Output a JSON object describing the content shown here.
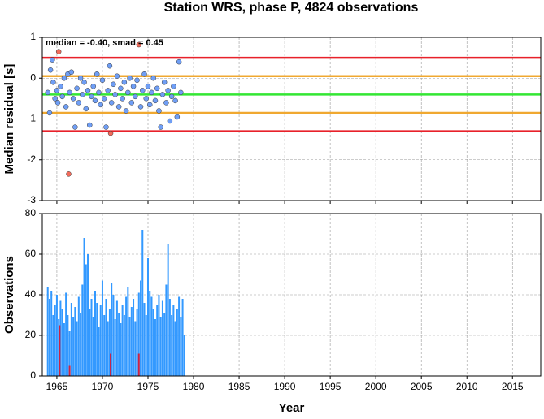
{
  "chart_data": [
    {
      "type": "scatter",
      "title": "Station WRS, phase P, 4824 observations",
      "ylabel": "Median residual [s]",
      "annotation": "median = -0.40, smad = 0.45",
      "xlim": [
        1963.4,
        2018.1
      ],
      "xticks": [
        1965,
        1970,
        1975,
        1980,
        1985,
        1990,
        1995,
        2000,
        2005,
        2010,
        2015
      ],
      "ylim": [
        -3,
        1
      ],
      "yticks": [
        -3,
        -2,
        -1,
        0,
        1
      ],
      "grid": true,
      "reference_lines": [
        {
          "value": 0.5,
          "color": "#e8212a"
        },
        {
          "value": -1.3,
          "color": "#e8212a"
        },
        {
          "value": 0.05,
          "color": "#f0a830"
        },
        {
          "value": -0.85,
          "color": "#f0a830"
        },
        {
          "value": -0.4,
          "color": "#33e633"
        }
      ],
      "series": [
        {
          "color": "#6f9ef5",
          "x": [
            1964.0,
            1964.2,
            1964.3,
            1964.5,
            1964.6,
            1964.8,
            1965.0,
            1965.1,
            1965.4,
            1965.6,
            1965.8,
            1966.0,
            1966.2,
            1966.4,
            1966.6,
            1966.8,
            1967.0,
            1967.2,
            1967.4,
            1967.6,
            1967.8,
            1968.0,
            1968.2,
            1968.4,
            1968.6,
            1968.8,
            1969.0,
            1969.2,
            1969.4,
            1969.6,
            1969.8,
            1970.0,
            1970.2,
            1970.4,
            1970.6,
            1970.8,
            1971.0,
            1971.2,
            1971.4,
            1971.6,
            1971.8,
            1972.0,
            1972.2,
            1972.4,
            1972.6,
            1972.8,
            1973.0,
            1973.2,
            1973.4,
            1973.6,
            1973.8,
            1974.2,
            1974.4,
            1974.6,
            1974.8,
            1975.0,
            1975.2,
            1975.4,
            1975.6,
            1975.8,
            1976.0,
            1976.2,
            1976.4,
            1976.6,
            1976.8,
            1977.0,
            1977.2,
            1977.4,
            1977.6,
            1977.8,
            1978.0,
            1978.2,
            1978.4,
            1978.6
          ],
          "values": [
            -0.35,
            -0.85,
            0.2,
            0.45,
            -0.1,
            -0.5,
            -0.3,
            -0.6,
            -0.2,
            -0.45,
            0.0,
            -0.7,
            0.1,
            -0.35,
            0.15,
            -0.5,
            -1.2,
            -0.25,
            -0.6,
            0.0,
            -0.4,
            -0.1,
            -0.75,
            -0.3,
            -1.15,
            -0.45,
            -0.2,
            -0.55,
            0.1,
            -0.35,
            -0.65,
            -0.05,
            -0.5,
            -1.2,
            -0.3,
            0.3,
            -0.6,
            -0.15,
            -0.4,
            0.05,
            -0.7,
            -0.25,
            -0.5,
            -0.1,
            -0.8,
            -0.35,
            0.0,
            -0.6,
            -0.2,
            -0.45,
            -0.05,
            -0.7,
            -0.3,
            0.1,
            -0.5,
            -0.2,
            -0.65,
            -0.35,
            0.0,
            -0.55,
            -0.25,
            -0.8,
            -1.2,
            -0.4,
            -0.1,
            -0.6,
            -0.3,
            -1.05,
            -0.45,
            -0.2,
            -0.55,
            -0.95,
            0.4,
            -0.35
          ]
        },
        {
          "color": "#f26b5b",
          "x": [
            1965.2,
            1974.0,
            1970.9,
            1966.3
          ],
          "values": [
            0.65,
            0.82,
            -1.35,
            -2.35
          ]
        }
      ]
    },
    {
      "type": "bar",
      "xlabel": "Year",
      "ylabel": "Observations",
      "xlim": [
        1963.4,
        2018.1
      ],
      "xticks": [
        1965,
        1970,
        1975,
        1980,
        1985,
        1990,
        1995,
        2000,
        2005,
        2010,
        2015
      ],
      "ylim": [
        0,
        80
      ],
      "yticks": [
        0,
        20,
        40,
        60,
        80
      ],
      "grid": true,
      "series": [
        {
          "color": "#3399ff",
          "x": [
            1964.0,
            1964.2,
            1964.4,
            1964.6,
            1964.8,
            1965.0,
            1965.2,
            1965.4,
            1965.6,
            1965.8,
            1966.0,
            1966.2,
            1966.4,
            1966.6,
            1966.8,
            1967.0,
            1967.2,
            1967.4,
            1967.6,
            1967.8,
            1968.0,
            1968.2,
            1968.4,
            1968.6,
            1968.8,
            1969.0,
            1969.2,
            1969.4,
            1969.6,
            1969.8,
            1970.0,
            1970.2,
            1970.4,
            1970.6,
            1970.8,
            1971.0,
            1971.2,
            1971.4,
            1971.6,
            1971.8,
            1972.0,
            1972.2,
            1972.4,
            1972.6,
            1972.8,
            1973.0,
            1973.2,
            1973.4,
            1973.6,
            1973.8,
            1974.0,
            1974.2,
            1974.4,
            1974.6,
            1974.8,
            1975.0,
            1975.2,
            1975.4,
            1975.6,
            1975.8,
            1976.0,
            1976.2,
            1976.4,
            1976.6,
            1976.8,
            1977.0,
            1977.2,
            1977.4,
            1977.6,
            1977.8,
            1978.0,
            1978.2,
            1978.4,
            1978.6,
            1978.8,
            1979.0
          ],
          "values": [
            44,
            38,
            42,
            30,
            35,
            40,
            28,
            37,
            33,
            26,
            41,
            30,
            22,
            36,
            29,
            34,
            27,
            39,
            31,
            45,
            68,
            55,
            60,
            33,
            38,
            29,
            42,
            36,
            24,
            35,
            47,
            30,
            38,
            27,
            33,
            46,
            40,
            28,
            37,
            31,
            26,
            35,
            30,
            39,
            44,
            29,
            34,
            38,
            27,
            33,
            41,
            47,
            72,
            36,
            30,
            58,
            42,
            39,
            33,
            28,
            35,
            40,
            29,
            37,
            31,
            45,
            65,
            38,
            30,
            35,
            27,
            33,
            39,
            29,
            38,
            20
          ]
        },
        {
          "color": "#cc2244",
          "x": [
            1965.3,
            1966.4,
            1970.9,
            1974.0
          ],
          "values": [
            25,
            5,
            11,
            11
          ]
        }
      ]
    }
  ]
}
